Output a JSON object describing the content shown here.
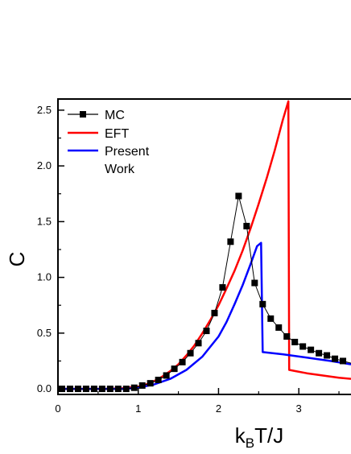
{
  "chart_data": {
    "type": "line",
    "xlabel": {
      "main": "k",
      "sub": "B",
      "rest": "T/J"
    },
    "ylabel": "C",
    "xlim": [
      0,
      3.65
    ],
    "ylim": [
      -0.05,
      2.6
    ],
    "xticks": [
      "0",
      "1",
      "2",
      "3"
    ],
    "yticks": [
      "0.0",
      "0.5",
      "1.0",
      "1.5",
      "2.0",
      "2.5"
    ],
    "legend_placement": "top-left",
    "grid": false,
    "series": [
      {
        "name": "MC",
        "color": "#000000",
        "marker": "square",
        "x": [
          0.05,
          0.15,
          0.25,
          0.35,
          0.45,
          0.55,
          0.65,
          0.75,
          0.85,
          0.95,
          1.05,
          1.15,
          1.25,
          1.35,
          1.45,
          1.55,
          1.65,
          1.75,
          1.85,
          1.95,
          2.05,
          2.15,
          2.25,
          2.35,
          2.45,
          2.55,
          2.65,
          2.75,
          2.85,
          2.95,
          3.05,
          3.15,
          3.25,
          3.35,
          3.45,
          3.55,
          3.65
        ],
        "y": [
          0.0,
          0.0,
          0.0,
          0.0,
          0.0,
          0.0,
          0.0,
          0.0,
          0.0,
          0.01,
          0.03,
          0.05,
          0.08,
          0.12,
          0.18,
          0.24,
          0.32,
          0.41,
          0.52,
          0.68,
          0.91,
          1.32,
          1.73,
          1.46,
          0.95,
          0.76,
          0.63,
          0.55,
          0.47,
          0.42,
          0.38,
          0.35,
          0.32,
          0.3,
          0.27,
          0.25,
          0.23
        ]
      },
      {
        "name": "EFT",
        "color": "#ff0000",
        "x": [
          0.0,
          0.3,
          0.6,
          0.8,
          1.0,
          1.1,
          1.2,
          1.3,
          1.4,
          1.5,
          1.6,
          1.7,
          1.8,
          1.9,
          2.0,
          2.1,
          2.2,
          2.3,
          2.4,
          2.5,
          2.6,
          2.7,
          2.8,
          2.87,
          2.88,
          2.95,
          3.1,
          3.3,
          3.5,
          3.65
        ],
        "y": [
          0.0,
          0.0,
          0.0,
          0.005,
          0.02,
          0.04,
          0.07,
          0.11,
          0.16,
          0.22,
          0.3,
          0.39,
          0.5,
          0.62,
          0.75,
          0.9,
          1.06,
          1.24,
          1.44,
          1.66,
          1.89,
          2.14,
          2.41,
          2.58,
          0.17,
          0.16,
          0.14,
          0.12,
          0.1,
          0.09
        ]
      },
      {
        "name": "Present Work",
        "color": "#0000ff",
        "x": [
          0.0,
          0.4,
          0.8,
          1.0,
          1.2,
          1.4,
          1.6,
          1.8,
          2.0,
          2.1,
          2.2,
          2.3,
          2.4,
          2.48,
          2.53,
          2.55,
          2.8,
          3.1,
          3.4,
          3.65
        ],
        "y": [
          0.0,
          0.0,
          0.0,
          0.01,
          0.04,
          0.09,
          0.17,
          0.29,
          0.47,
          0.6,
          0.76,
          0.93,
          1.12,
          1.28,
          1.31,
          0.33,
          0.31,
          0.28,
          0.25,
          0.22
        ]
      }
    ]
  }
}
